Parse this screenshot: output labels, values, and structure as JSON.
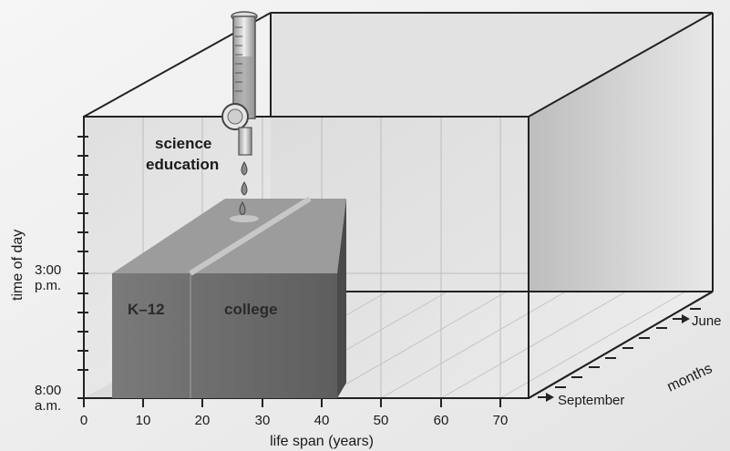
{
  "x_axis": {
    "title": "life span (years)",
    "ticks": [
      "0",
      "10",
      "20",
      "30",
      "40",
      "50",
      "60",
      "70"
    ]
  },
  "y_axis": {
    "title": "time of day",
    "bottom_label_time": "8:00",
    "bottom_label_ampm": "a.m.",
    "mid_label_time": "3:00",
    "mid_label_ampm": "p.m."
  },
  "z_axis": {
    "title": "months",
    "start_label": "September",
    "end_label": "June"
  },
  "labels": {
    "science_line1": "science",
    "science_line2": "education",
    "k12": "K–12",
    "college": "college"
  },
  "colors": {
    "background": "#f3f3f3",
    "box_edge": "#222222",
    "block_front": "#6f6f6f",
    "block_top": "#9a9a9a",
    "block_side": "#4f4f4f"
  }
}
